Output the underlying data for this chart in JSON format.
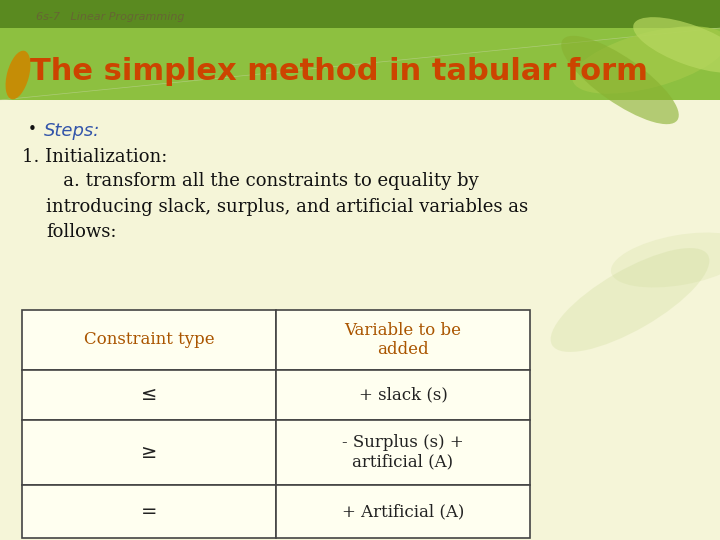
{
  "slide_bg": "#f5f5d8",
  "header_main_color": "#8dc040",
  "header_dark_strip_color": "#5a8a20",
  "header_title": "The simplex method in tabular form",
  "header_title_color": "#cc4400",
  "header_subtitle": "6s-7   Linear Programming",
  "header_subtitle_color": "#666633",
  "bullet_char": "•",
  "bullet_label": "Steps:",
  "bullet_label_color": "#3355aa",
  "body_text_color": "#111111",
  "init_line": "1. Initialization:",
  "body_a_text": "   a. transform all the constraints to equality by\nintroducing slack, surplus, and artificial variables as\nfollows:",
  "table_header_col1": "Constraint type",
  "table_header_col2": "Variable to be\nadded",
  "table_header_color": "#aa5500",
  "table_row1_col1": "≤",
  "table_row1_col2": "+ slack (s)",
  "table_row2_col1": "≥",
  "table_row2_col2": "- Surplus (s) +\nartificial (A)",
  "table_row3_col1": "=",
  "table_row3_col2": "+ Artificial (A)",
  "table_text_color": "#222222",
  "table_bg": "#fffff0",
  "table_border_color": "#444444",
  "leaf_right_colors": [
    "#a0c848",
    "#b8d860",
    "#88b030"
  ],
  "leaf_left_color": "#cc8800",
  "diag_line_color": "#ddddcc"
}
